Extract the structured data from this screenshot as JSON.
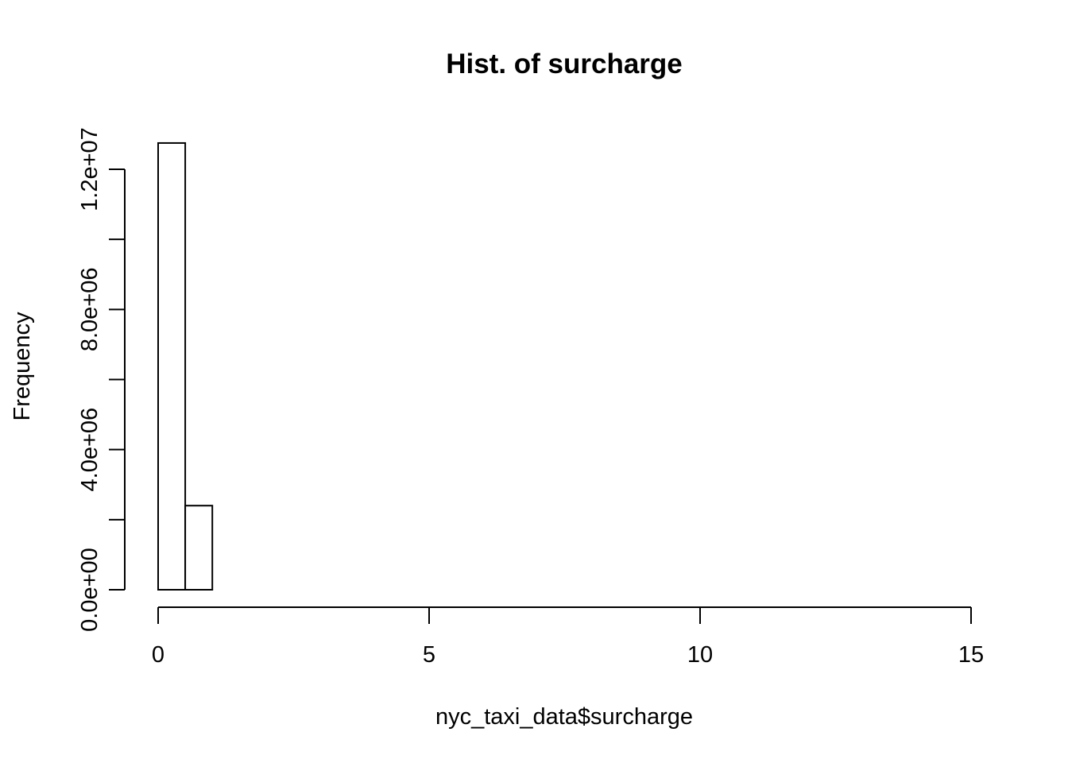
{
  "chart_data": {
    "type": "bar",
    "title": "Hist. of surcharge",
    "xlabel": "nyc_taxi_data$surcharge",
    "ylabel": "Frequency",
    "bin_width": 0.5,
    "bin_starts": [
      0,
      0.5,
      1,
      1.5,
      2,
      2.5,
      3,
      3.5,
      4,
      4.5,
      5,
      5.5,
      6,
      6.5,
      7,
      7.5,
      8,
      8.5,
      9,
      9.5,
      10,
      10.5,
      11,
      11.5,
      12,
      12.5,
      13,
      13.5,
      14,
      14.5
    ],
    "values": [
      12750000,
      2400000,
      0,
      0,
      0,
      0,
      0,
      0,
      0,
      0,
      0,
      0,
      0,
      0,
      0,
      0,
      0,
      0,
      0,
      0,
      0,
      0,
      0,
      0,
      0,
      0,
      0,
      0,
      0,
      0
    ],
    "xlim": [
      0,
      15
    ],
    "ylim": [
      0,
      12750000
    ],
    "x_ticks": [
      0,
      5,
      10,
      15
    ],
    "x_tick_labels": [
      "0",
      "5",
      "10",
      "15"
    ],
    "y_ticks": [
      0,
      2000000,
      4000000,
      6000000,
      8000000,
      10000000,
      12000000
    ],
    "y_tick_labels": [
      "0.0e+00",
      "",
      "4.0e+06",
      "",
      "8.0e+06",
      "",
      "1.2e+07"
    ],
    "grid": false
  }
}
